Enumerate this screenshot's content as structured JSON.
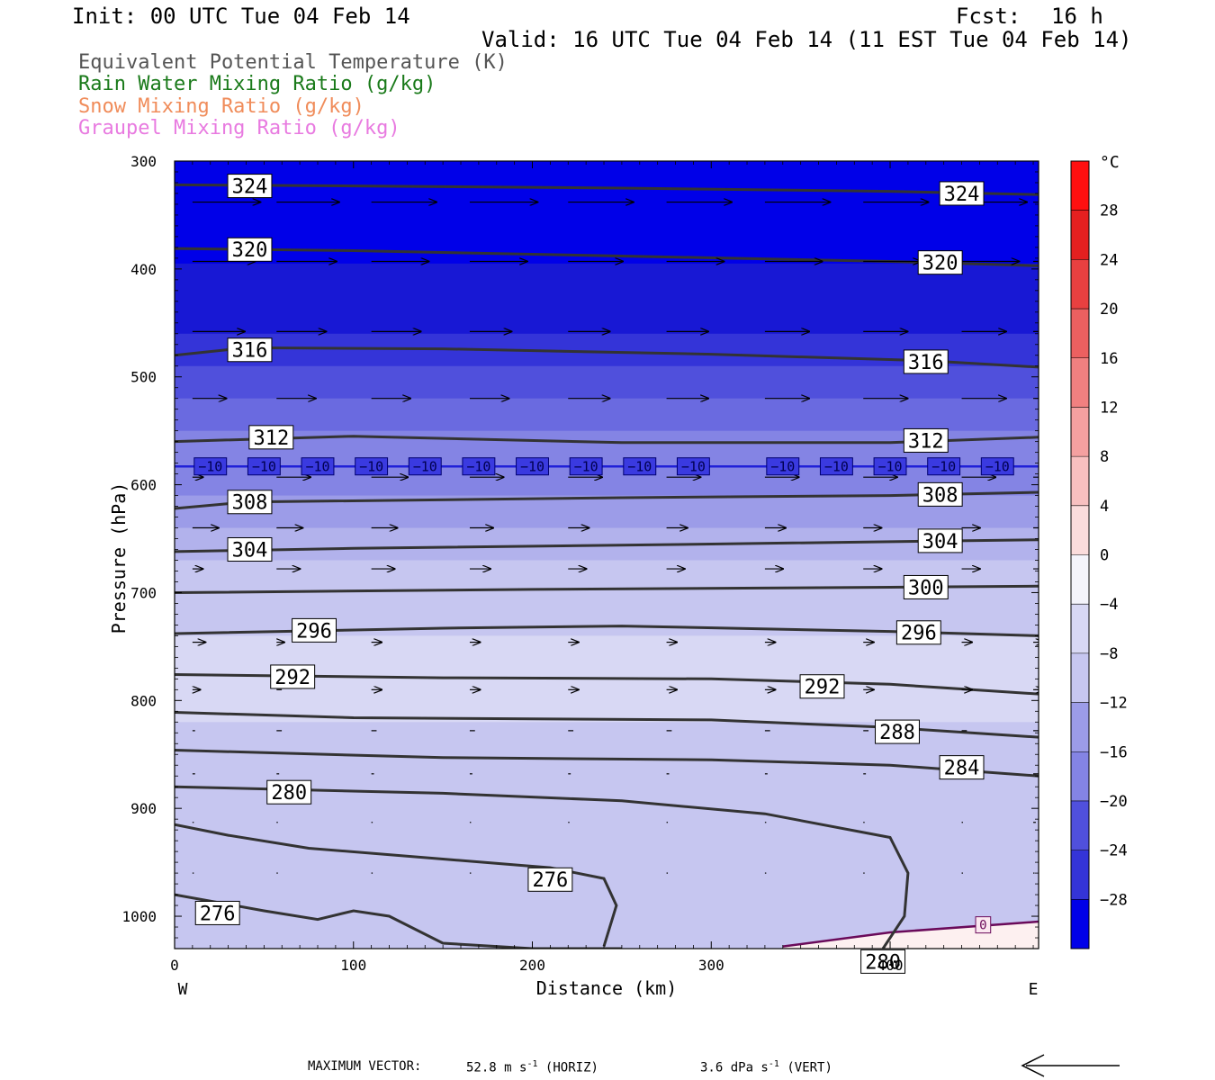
{
  "header": {
    "init": "Init: 00 UTC Tue 04 Feb 14",
    "fcst_label": "Fcst:",
    "fcst_value": "16 h",
    "valid": "Valid: 16 UTC Tue 04 Feb 14 (11 EST Tue 04 Feb 14)"
  },
  "legend": [
    {
      "label": "Equivalent Potential Temperature (K)",
      "color": "#555555"
    },
    {
      "label": "Rain Water Mixing Ratio (g/kg)",
      "color": "#1a7a1a"
    },
    {
      "label": "Snow Mixing Ratio (g/kg)",
      "color": "#f08c5a"
    },
    {
      "label": "Graupel Mixing Ratio (g/kg)",
      "color": "#e87ae0"
    }
  ],
  "footer": {
    "max_vector_label": "MAXIMUM VECTOR:",
    "horiz_value": "52.8 m s",
    "horiz_unit_sup": "-1",
    "horiz_tag": "(HORIZ)",
    "vert_value": "3.6 dPa s",
    "vert_unit_sup": "-1",
    "vert_tag": "(VERT)"
  },
  "chart_data": {
    "type": "contour",
    "xlabel": "Distance (km)",
    "ylabel": "Pressure (hPa)",
    "x_ticks": [
      0,
      100,
      200,
      300,
      400
    ],
    "xlim": [
      0,
      483
    ],
    "y_ticks": [
      300,
      400,
      500,
      600,
      700,
      800,
      900,
      1000
    ],
    "ylim": [
      300,
      1030
    ],
    "y_scale": "linear (inverted)",
    "left_label": "W",
    "right_label": "E",
    "colorbar": {
      "unit": "°C",
      "labels": [
        "28",
        "24",
        "20",
        "16",
        "12",
        "8",
        "4",
        "0",
        "−4",
        "−8",
        "−12",
        "−16",
        "−20",
        "−24",
        "−28"
      ],
      "values": [
        28,
        24,
        20,
        16,
        12,
        8,
        4,
        0,
        -4,
        -8,
        -12,
        -16,
        -20,
        -24,
        -28
      ],
      "range": [
        -32,
        32
      ],
      "colors_warm": [
        "#fdf0f0",
        "#fbdcdc",
        "#f8c0c0",
        "#f4a0a0",
        "#f08080",
        "#ec6060",
        "#e84040",
        "#e42020",
        "#ff1010"
      ],
      "colors_cold": [
        "#f4f4fb",
        "#e8e8f8",
        "#d8d8f4",
        "#c6c6f0",
        "#b2b2ec",
        "#9c9ce8",
        "#8484e4",
        "#6a6ae0",
        "#5050dc",
        "#3434d8",
        "#1818d4",
        "#0000e8"
      ]
    },
    "temperature_bands": [
      {
        "p_top": 300,
        "p_bottom": 395,
        "temp": -30
      },
      {
        "p_top": 395,
        "p_bottom": 430,
        "temp": -28
      },
      {
        "p_top": 430,
        "p_bottom": 460,
        "temp": -26
      },
      {
        "p_top": 460,
        "p_bottom": 490,
        "temp": -24
      },
      {
        "p_top": 490,
        "p_bottom": 520,
        "temp": -22
      },
      {
        "p_top": 520,
        "p_bottom": 550,
        "temp": -20
      },
      {
        "p_top": 550,
        "p_bottom": 580,
        "temp": -18
      },
      {
        "p_top": 580,
        "p_bottom": 610,
        "temp": -16
      },
      {
        "p_top": 610,
        "p_bottom": 640,
        "temp": -14
      },
      {
        "p_top": 640,
        "p_bottom": 670,
        "temp": -12
      },
      {
        "p_top": 670,
        "p_bottom": 700,
        "temp": -10
      },
      {
        "p_top": 700,
        "p_bottom": 740,
        "temp": -8
      },
      {
        "p_top": 740,
        "p_bottom": 820,
        "temp": -6
      },
      {
        "p_top": 820,
        "p_bottom": 870,
        "temp": -8
      },
      {
        "p_top": 870,
        "p_bottom": 940,
        "temp": -10
      },
      {
        "p_top": 940,
        "p_bottom": 1030,
        "temp": -8
      }
    ],
    "isotherm": {
      "value": "−10",
      "label": "−10",
      "p": 583,
      "color": "#2020d8",
      "label_x": [
        20,
        50,
        80,
        110,
        140,
        170,
        200,
        230,
        260,
        290,
        340,
        370,
        400,
        430,
        460
      ]
    },
    "freezing_contour": {
      "label": "0",
      "points": [
        [
          340,
          1028
        ],
        [
          400,
          1015
        ],
        [
          483,
          1005
        ]
      ]
    },
    "theta_e_contours": [
      {
        "label": "324",
        "points": [
          [
            0,
            322
          ],
          [
            100,
            323
          ],
          [
            250,
            325
          ],
          [
            400,
            328
          ],
          [
            483,
            331
          ]
        ],
        "label_at": [
          [
            42,
            323
          ],
          [
            440,
            330
          ]
        ]
      },
      {
        "label": "320",
        "points": [
          [
            0,
            381
          ],
          [
            100,
            383
          ],
          [
            250,
            388
          ],
          [
            400,
            393
          ],
          [
            483,
            397
          ]
        ],
        "label_at": [
          [
            42,
            382
          ],
          [
            428,
            394
          ]
        ]
      },
      {
        "label": "316",
        "points": [
          [
            0,
            480
          ],
          [
            40,
            473
          ],
          [
            150,
            474
          ],
          [
            300,
            479
          ],
          [
            420,
            485
          ],
          [
            483,
            491
          ]
        ],
        "label_at": [
          [
            42,
            475
          ],
          [
            420,
            486
          ]
        ]
      },
      {
        "label": "312",
        "points": [
          [
            0,
            560
          ],
          [
            100,
            555
          ],
          [
            250,
            561
          ],
          [
            400,
            561
          ],
          [
            483,
            556
          ]
        ],
        "label_at": [
          [
            54,
            556
          ],
          [
            420,
            559
          ]
        ]
      },
      {
        "label": "308",
        "points": [
          [
            0,
            622
          ],
          [
            40,
            616
          ],
          [
            250,
            612
          ],
          [
            400,
            610
          ],
          [
            483,
            607
          ]
        ],
        "label_at": [
          [
            42,
            616
          ],
          [
            428,
            609
          ]
        ]
      },
      {
        "label": "304",
        "points": [
          [
            0,
            662
          ],
          [
            100,
            659
          ],
          [
            300,
            655
          ],
          [
            483,
            651
          ]
        ],
        "label_at": [
          [
            42,
            660
          ],
          [
            428,
            652
          ]
        ]
      },
      {
        "label": "300",
        "points": [
          [
            0,
            700
          ],
          [
            200,
            697
          ],
          [
            400,
            695
          ],
          [
            483,
            694
          ]
        ],
        "label_at": [
          [
            420,
            695
          ]
        ]
      },
      {
        "label": "296",
        "points": [
          [
            0,
            738
          ],
          [
            150,
            733
          ],
          [
            250,
            731
          ],
          [
            400,
            736
          ],
          [
            483,
            740
          ]
        ],
        "label_at": [
          [
            78,
            735
          ],
          [
            416,
            737
          ]
        ]
      },
      {
        "label": "292",
        "points": [
          [
            0,
            776
          ],
          [
            150,
            779
          ],
          [
            300,
            780
          ],
          [
            400,
            785
          ],
          [
            483,
            794
          ]
        ],
        "label_at": [
          [
            66,
            778
          ],
          [
            362,
            787
          ]
        ]
      },
      {
        "label": "288",
        "points": [
          [
            0,
            811
          ],
          [
            100,
            816
          ],
          [
            300,
            818
          ],
          [
            400,
            825
          ],
          [
            483,
            834
          ]
        ],
        "label_at": [
          [
            404,
            829
          ]
        ]
      },
      {
        "label": "284",
        "points": [
          [
            0,
            846
          ],
          [
            150,
            853
          ],
          [
            300,
            855
          ],
          [
            400,
            860
          ],
          [
            483,
            870
          ]
        ],
        "label_at": [
          [
            440,
            862
          ]
        ]
      },
      {
        "label": "280",
        "points": [
          [
            0,
            880
          ],
          [
            150,
            886
          ],
          [
            250,
            893
          ],
          [
            330,
            905
          ],
          [
            400,
            927
          ],
          [
            410,
            960
          ],
          [
            408,
            1000
          ],
          [
            396,
            1030
          ]
        ],
        "label_at": [
          [
            64,
            885
          ],
          [
            396,
            1042
          ]
        ]
      },
      {
        "label": "276",
        "points": [
          [
            0,
            915
          ],
          [
            30,
            925
          ],
          [
            75,
            937
          ],
          [
            150,
            947
          ],
          [
            210,
            955
          ],
          [
            240,
            965
          ],
          [
            247,
            990
          ],
          [
            240,
            1028
          ]
        ],
        "label_at": [
          [
            210,
            966
          ]
        ]
      },
      {
        "label": "276",
        "points": [
          [
            0,
            980
          ],
          [
            50,
            995
          ],
          [
            80,
            1003
          ],
          [
            100,
            995
          ],
          [
            120,
            1000
          ],
          [
            150,
            1025
          ],
          [
            200,
            1030
          ],
          [
            250,
            1030
          ]
        ],
        "label_at": [
          [
            24,
            997
          ]
        ]
      }
    ],
    "wind_vectors": {
      "max_horiz": 52.8,
      "max_horiz_unit": "m s-1",
      "max_vert": 3.6,
      "max_vert_unit": "dPa s-1",
      "rows": [
        {
          "p": 338,
          "speeds": [
            52,
            48,
            50,
            52,
            50,
            50,
            50,
            50,
            50,
            50
          ]
        },
        {
          "p": 393,
          "speeds": [
            48,
            46,
            44,
            44,
            42,
            44,
            44,
            44,
            44,
            44
          ]
        },
        {
          "p": 458,
          "speeds": [
            40,
            38,
            38,
            32,
            32,
            32,
            34,
            34,
            34,
            36
          ]
        },
        {
          "p": 520,
          "speeds": [
            26,
            30,
            30,
            30,
            32,
            32,
            34,
            34,
            34,
            36
          ]
        },
        {
          "p": 593,
          "speeds": [
            8,
            26,
            28,
            26,
            26,
            26,
            26,
            26,
            26,
            26
          ]
        },
        {
          "p": 640,
          "speeds": [
            20,
            20,
            20,
            18,
            16,
            16,
            16,
            14,
            14,
            14
          ]
        },
        {
          "p": 678,
          "speeds": [
            8,
            18,
            18,
            16,
            14,
            14,
            14,
            14,
            14,
            14
          ]
        },
        {
          "p": 746,
          "speeds": [
            10,
            6,
            8,
            8,
            8,
            8,
            8,
            8,
            8,
            8
          ]
        },
        {
          "p": 790,
          "speeds": [
            6,
            4,
            8,
            8,
            8,
            8,
            8,
            8,
            8,
            8
          ]
        },
        {
          "p": 828,
          "speeds": [
            2,
            4,
            4,
            4,
            4,
            4,
            4,
            4,
            4,
            4
          ]
        },
        {
          "p": 868,
          "speeds": [
            2,
            2,
            2,
            2,
            2,
            2,
            2,
            2,
            2,
            4
          ]
        },
        {
          "p": 913,
          "speeds": [
            1,
            1,
            1,
            1,
            1,
            1,
            1,
            1,
            1,
            2
          ]
        },
        {
          "p": 960,
          "speeds": [
            1,
            1,
            1,
            1,
            1,
            1,
            1,
            1,
            1,
            1
          ]
        }
      ]
    }
  }
}
